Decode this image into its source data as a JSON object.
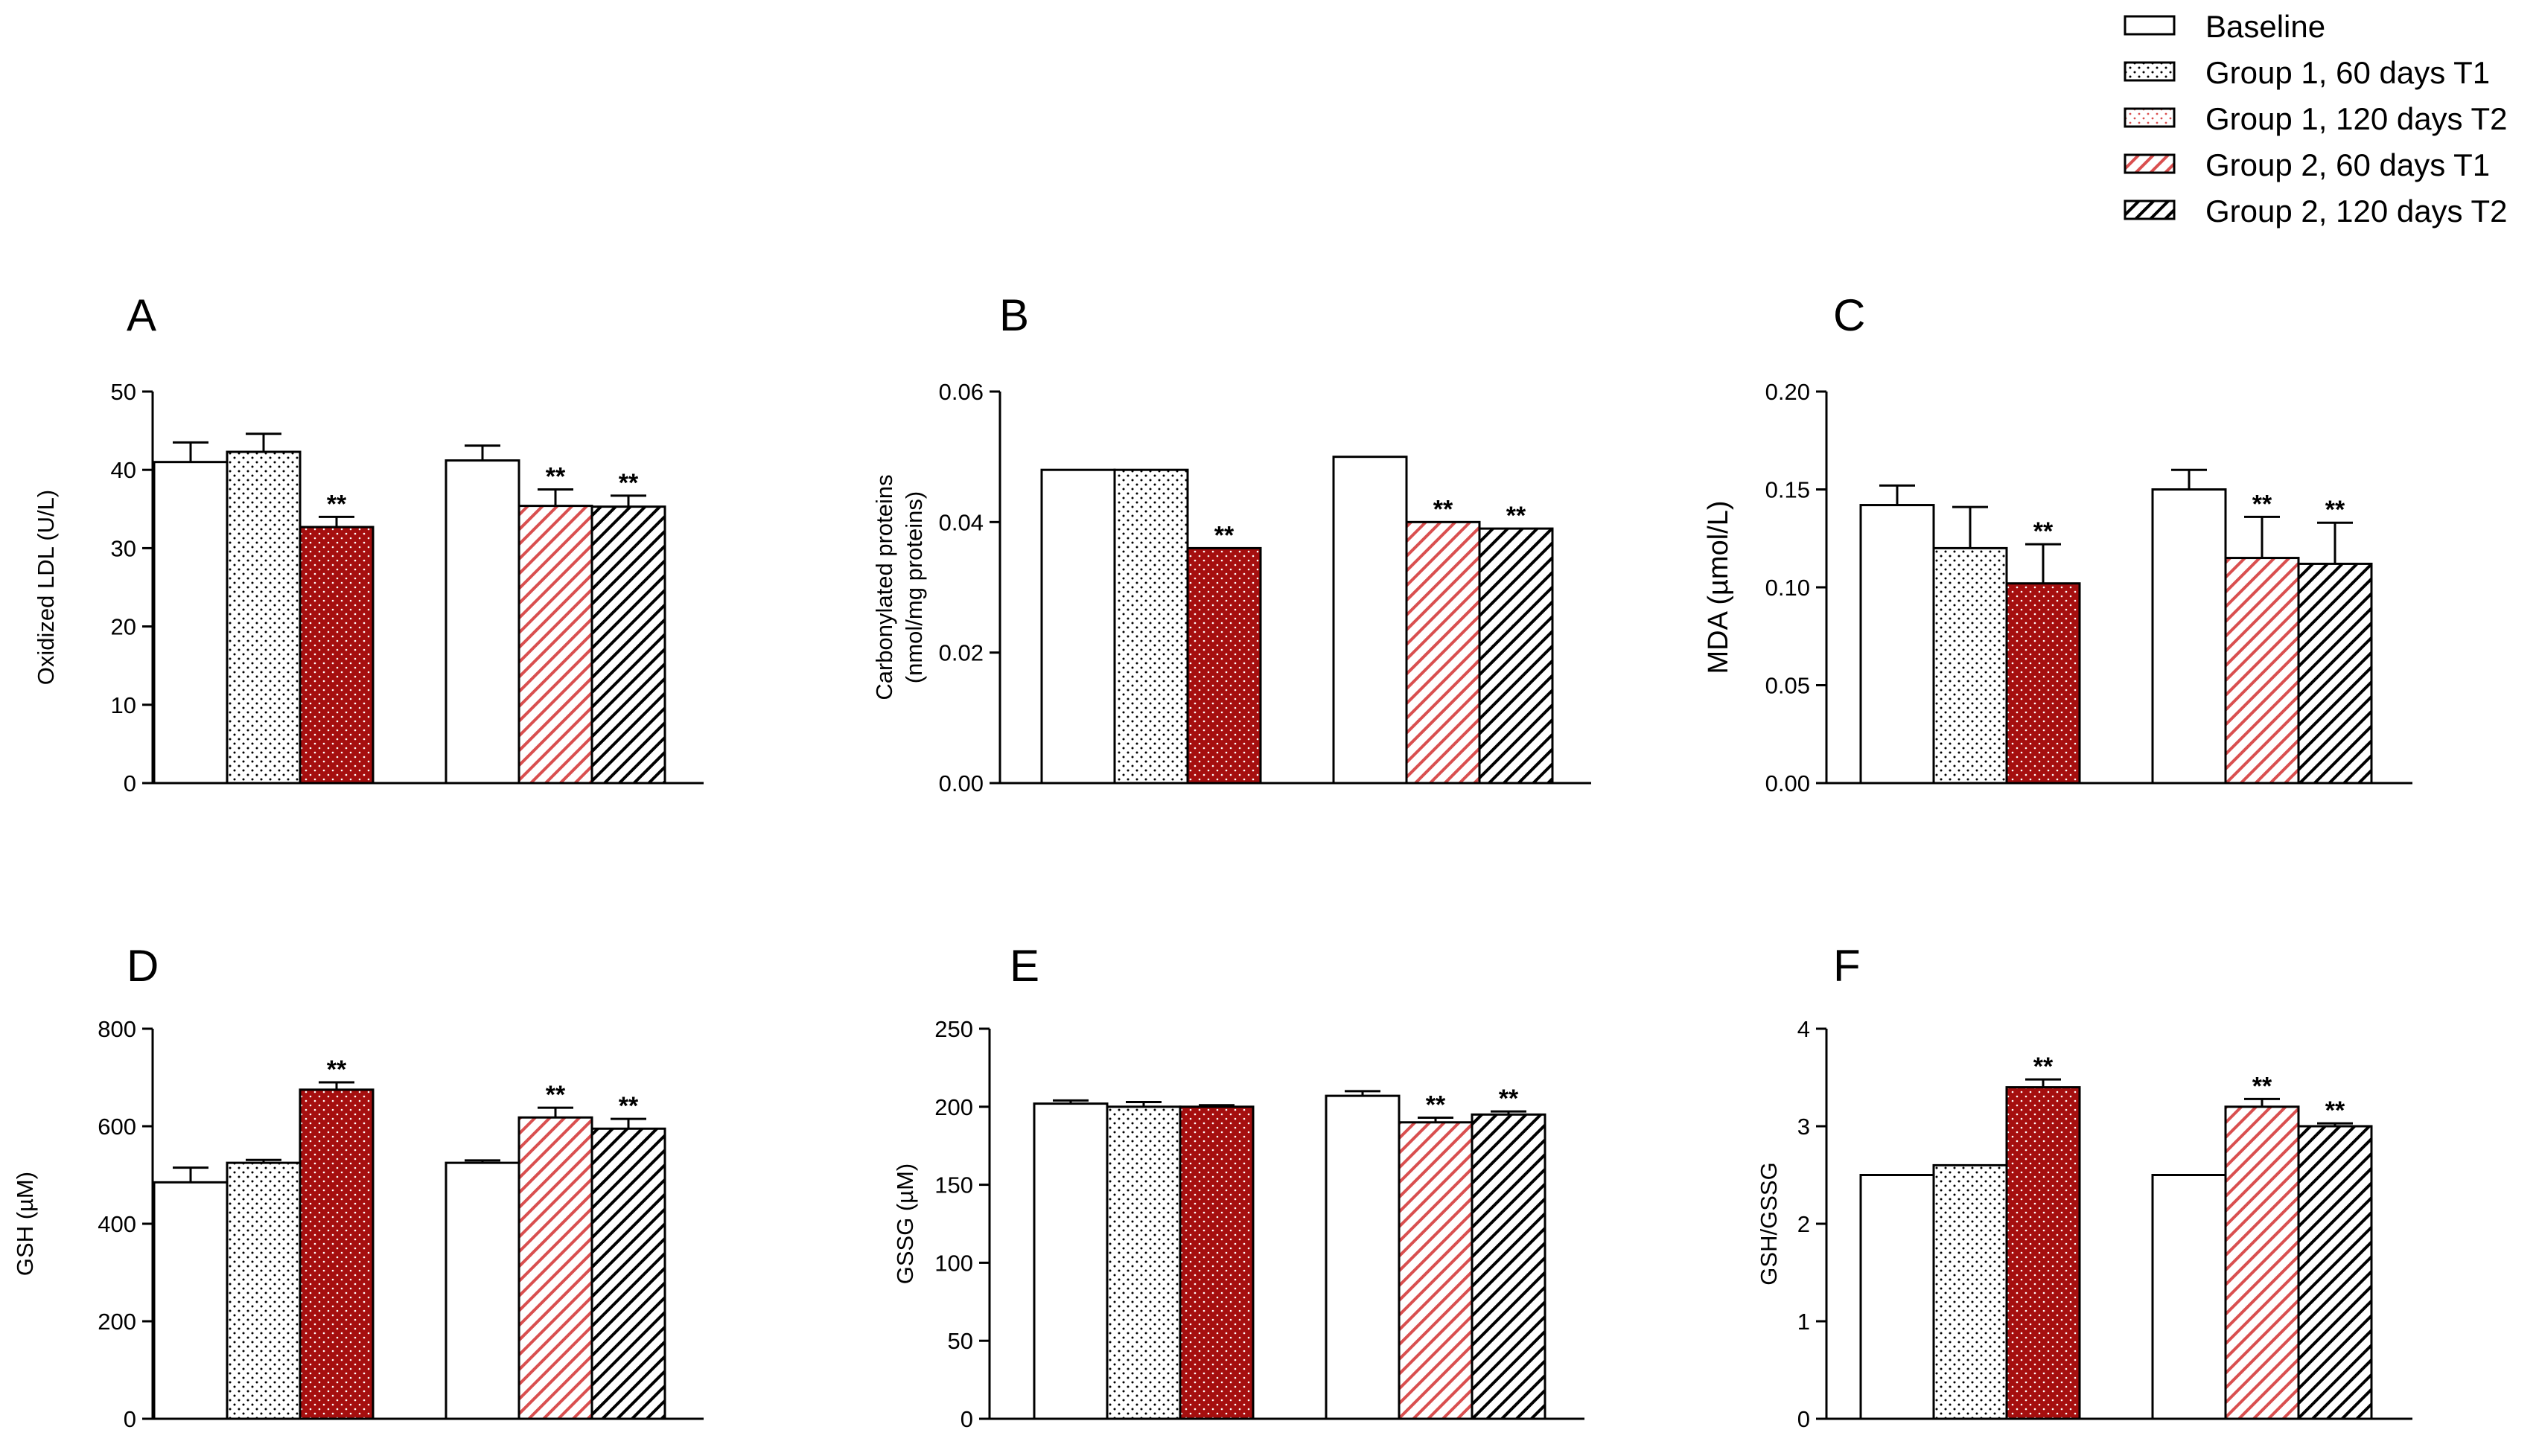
{
  "colors": {
    "dark_red": "#a50f0f",
    "light_red": "#d94f4f",
    "black": "#000000",
    "white": "#ffffff"
  },
  "legend": [
    {
      "label": "Baseline",
      "style": "open"
    },
    {
      "label": "Group 1, 60 days T1",
      "style": "dots"
    },
    {
      "label": "Group 1, 120 days T2",
      "style": "reddots"
    },
    {
      "label": "Group 2, 60 days T1",
      "style": "redhatch"
    },
    {
      "label": "Group 2, 120 days T2",
      "style": "blackhatch"
    }
  ],
  "chart_data": [
    {
      "panel": "A",
      "type": "bar",
      "ylabel": "Oxidized LDL (U/L)",
      "ylim": [
        0,
        50
      ],
      "yticks": [
        "0",
        "10",
        "20",
        "30",
        "40",
        "50"
      ],
      "bars": [
        {
          "series": "Baseline",
          "value": 41.0,
          "err": 2.5,
          "sig": ""
        },
        {
          "series": "Group 1, 60 days T1",
          "value": 42.3,
          "err": 2.3,
          "sig": ""
        },
        {
          "series": "Group 1, 120 days T2",
          "value": 32.7,
          "err": 1.3,
          "sig": "**"
        },
        {
          "series": "Baseline",
          "value": 41.2,
          "err": 1.9,
          "sig": ""
        },
        {
          "series": "Group 2, 60 days T1",
          "value": 35.4,
          "err": 2.1,
          "sig": "**"
        },
        {
          "series": "Group 2, 120 days T2",
          "value": 35.3,
          "err": 1.4,
          "sig": "**"
        }
      ]
    },
    {
      "panel": "B",
      "type": "bar",
      "ylabel": [
        "Carbonylated proteins",
        "(nmol/mg proteins)"
      ],
      "ylim": [
        0,
        0.06
      ],
      "yticks": [
        "0.00",
        "0.02",
        "0.04",
        "0.06"
      ],
      "bars": [
        {
          "series": "Baseline",
          "value": 0.048,
          "err": 0,
          "sig": ""
        },
        {
          "series": "Group 1, 60 days T1",
          "value": 0.048,
          "err": 0,
          "sig": ""
        },
        {
          "series": "Group 1, 120 days T2",
          "value": 0.036,
          "err": 0,
          "sig": "**"
        },
        {
          "series": "Baseline",
          "value": 0.05,
          "err": 0,
          "sig": ""
        },
        {
          "series": "Group 2, 60 days T1",
          "value": 0.04,
          "err": 0,
          "sig": "**"
        },
        {
          "series": "Group 2, 120 days T2",
          "value": 0.039,
          "err": 0,
          "sig": "**"
        }
      ]
    },
    {
      "panel": "C",
      "type": "bar",
      "ylabel": "MDA (µmol/L)",
      "ylim": [
        0,
        0.2
      ],
      "yticks": [
        "0.00",
        "0.05",
        "0.10",
        "0.15",
        "0.20"
      ],
      "bars": [
        {
          "series": "Baseline",
          "value": 0.142,
          "err": 0.01,
          "sig": ""
        },
        {
          "series": "Group 1, 60 days T1",
          "value": 0.12,
          "err": 0.021,
          "sig": ""
        },
        {
          "series": "Group 1, 120 days T2",
          "value": 0.102,
          "err": 0.02,
          "sig": "**"
        },
        {
          "series": "Baseline",
          "value": 0.15,
          "err": 0.01,
          "sig": ""
        },
        {
          "series": "Group 2, 60 days T1",
          "value": 0.115,
          "err": 0.021,
          "sig": "**"
        },
        {
          "series": "Group 2, 120 days T2",
          "value": 0.112,
          "err": 0.021,
          "sig": "**"
        }
      ]
    },
    {
      "panel": "D",
      "type": "bar",
      "ylabel": "GSH (µM)",
      "ylim": [
        0,
        800
      ],
      "yticks": [
        "0",
        "200",
        "400",
        "600",
        "800"
      ],
      "bars": [
        {
          "series": "Baseline",
          "value": 485,
          "err": 30,
          "sig": ""
        },
        {
          "series": "Group 1, 60 days T1",
          "value": 525,
          "err": 6,
          "sig": ""
        },
        {
          "series": "Group 1, 120 days T2",
          "value": 675,
          "err": 15,
          "sig": "**"
        },
        {
          "series": "Baseline",
          "value": 525,
          "err": 5,
          "sig": ""
        },
        {
          "series": "Group 2, 60 days T1",
          "value": 618,
          "err": 20,
          "sig": "**"
        },
        {
          "series": "Group 2, 120 days T2",
          "value": 595,
          "err": 20,
          "sig": "**"
        }
      ]
    },
    {
      "panel": "E",
      "type": "bar",
      "ylabel": "GSSG (µM)",
      "ylim": [
        0,
        250
      ],
      "yticks": [
        "0",
        "50",
        "100",
        "150",
        "200",
        "250"
      ],
      "bars": [
        {
          "series": "Baseline",
          "value": 202,
          "err": 2,
          "sig": ""
        },
        {
          "series": "Group 1, 60 days T1",
          "value": 200,
          "err": 3,
          "sig": ""
        },
        {
          "series": "Group 1, 120 days T2",
          "value": 200,
          "err": 1,
          "sig": ""
        },
        {
          "series": "Baseline",
          "value": 207,
          "err": 3,
          "sig": ""
        },
        {
          "series": "Group 2, 60 days T1",
          "value": 190,
          "err": 3,
          "sig": "**"
        },
        {
          "series": "Group 2, 120 days T2",
          "value": 195,
          "err": 2,
          "sig": "**"
        }
      ]
    },
    {
      "panel": "F",
      "type": "bar",
      "ylabel": "GSH/GSSG",
      "ylim": [
        0,
        4
      ],
      "yticks": [
        "0",
        "1",
        "2",
        "3",
        "4"
      ],
      "bars": [
        {
          "series": "Baseline",
          "value": 2.5,
          "err": 0,
          "sig": ""
        },
        {
          "series": "Group 1, 60 days T1",
          "value": 2.6,
          "err": 0,
          "sig": ""
        },
        {
          "series": "Group 1, 120 days T2",
          "value": 3.4,
          "err": 0.08,
          "sig": "**"
        },
        {
          "series": "Baseline",
          "value": 2.5,
          "err": 0,
          "sig": ""
        },
        {
          "series": "Group 2, 60 days T1",
          "value": 3.2,
          "err": 0.08,
          "sig": "**"
        },
        {
          "series": "Group 2, 120 days T2",
          "value": 3.0,
          "err": 0.03,
          "sig": "**"
        }
      ]
    }
  ]
}
